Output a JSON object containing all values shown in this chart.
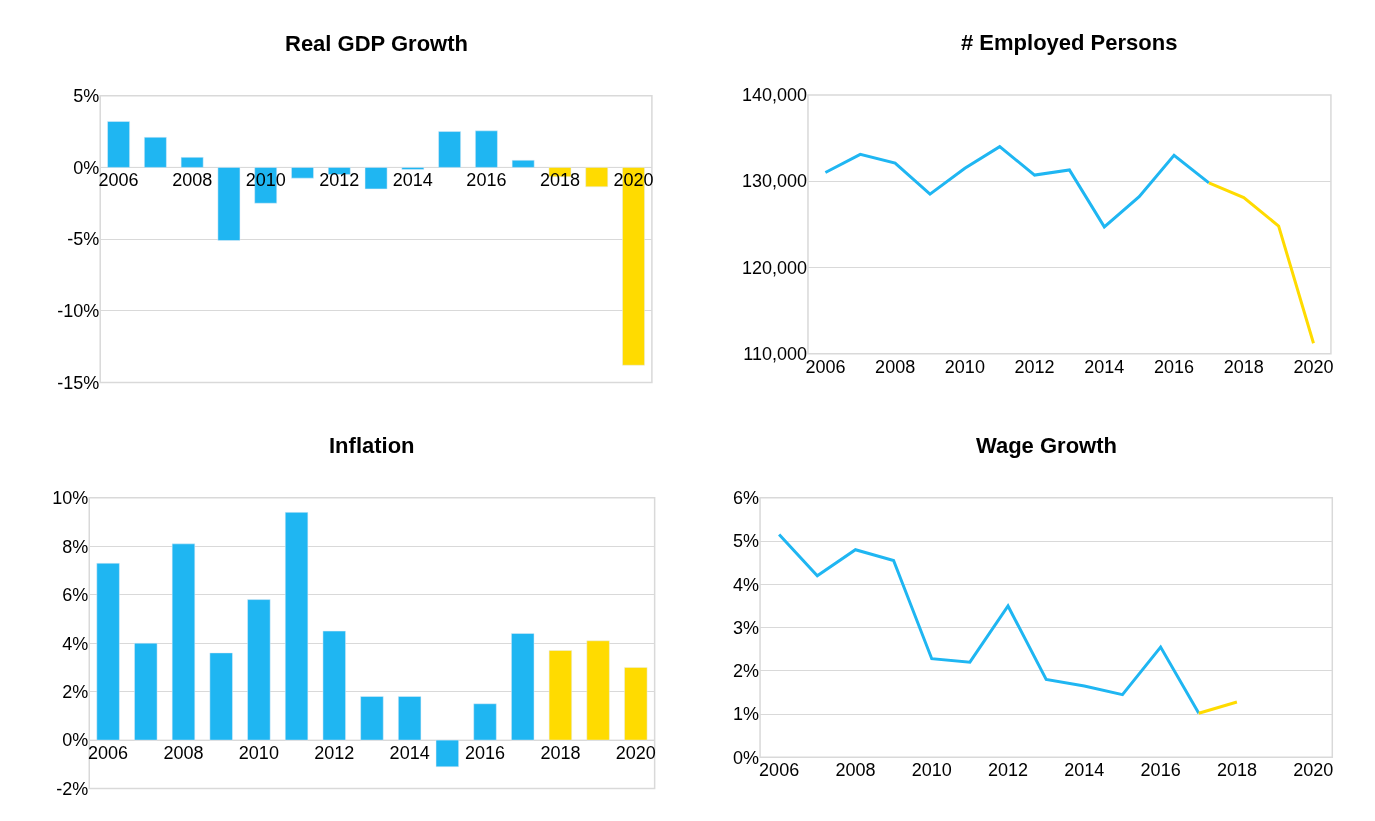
{
  "chart_data": [
    {
      "type": "bar",
      "title": "Real GDP Growth",
      "grid": "y",
      "xlim": [
        2005.5,
        2020.5
      ],
      "xticks": [
        2006,
        2008,
        2010,
        2012,
        2014,
        2016,
        2018,
        2020
      ],
      "ylim": [
        -15,
        5
      ],
      "yticks": [
        {
          "value": -15,
          "label": "-15%"
        },
        {
          "value": -10,
          "label": "-10%"
        },
        {
          "value": -5,
          "label": "-5%"
        },
        {
          "value": 0,
          "label": "0%"
        },
        {
          "value": 5,
          "label": "5%"
        }
      ],
      "series": [
        {
          "color": "#1fb6f2",
          "x": [
            2006,
            2007,
            2008,
            2009,
            2010,
            2011,
            2012,
            2013,
            2014,
            2015,
            2016,
            2017
          ],
          "values": [
            3.2,
            2.1,
            0.7,
            -5.1,
            -2.5,
            -0.75,
            -0.5,
            -1.5,
            -0.15,
            2.5,
            2.55,
            0.5
          ]
        },
        {
          "color": "#ffdb00",
          "x": [
            2018,
            2019,
            2020
          ],
          "values": [
            -0.65,
            -1.35,
            -13.8
          ]
        }
      ]
    },
    {
      "type": "line",
      "title": "# Employed Persons",
      "grid": "y",
      "xlim": [
        2005.5,
        2020.5
      ],
      "xticks": [
        2006,
        2008,
        2010,
        2012,
        2014,
        2016,
        2018,
        2020
      ],
      "ylim": [
        110000,
        140000
      ],
      "yticks": [
        {
          "value": 110000,
          "label": "110,000"
        },
        {
          "value": 120000,
          "label": "120,000"
        },
        {
          "value": 130000,
          "label": "130,000"
        },
        {
          "value": 140000,
          "label": "140,000"
        }
      ],
      "series": [
        {
          "color": "#1fb6f2",
          "x": [
            2006,
            2007,
            2008,
            2009,
            2010,
            2011,
            2012,
            2013,
            2014,
            2015,
            2016,
            2017
          ],
          "values": [
            131000,
            133100,
            132100,
            128500,
            131500,
            134000,
            130700,
            131300,
            124700,
            128200,
            133000,
            129800
          ]
        },
        {
          "color": "#ffdb00",
          "x": [
            2017,
            2018,
            2019,
            2020
          ],
          "values": [
            129800,
            128100,
            124800,
            111200
          ]
        }
      ]
    },
    {
      "type": "bar",
      "title": "Inflation",
      "grid": "y",
      "xlim": [
        2005.5,
        2020.5
      ],
      "xticks": [
        2006,
        2008,
        2010,
        2012,
        2014,
        2016,
        2018,
        2020
      ],
      "ylim": [
        -2,
        10
      ],
      "yticks": [
        {
          "value": -2,
          "label": "-2%"
        },
        {
          "value": 0,
          "label": "0%"
        },
        {
          "value": 2,
          "label": "2%"
        },
        {
          "value": 4,
          "label": "4%"
        },
        {
          "value": 6,
          "label": "6%"
        },
        {
          "value": 8,
          "label": "8%"
        },
        {
          "value": 10,
          "label": "10%"
        }
      ],
      "series": [
        {
          "color": "#1fb6f2",
          "x": [
            2006,
            2007,
            2008,
            2009,
            2010,
            2011,
            2012,
            2013,
            2014,
            2015,
            2016,
            2017
          ],
          "values": [
            7.3,
            4.0,
            8.1,
            3.6,
            5.8,
            9.4,
            4.5,
            1.8,
            1.8,
            -1.1,
            1.5,
            4.4
          ]
        },
        {
          "color": "#ffdb00",
          "x": [
            2018,
            2019,
            2020
          ],
          "values": [
            3.7,
            4.1,
            3.0
          ]
        }
      ]
    },
    {
      "type": "line",
      "title": "Wage Growth",
      "grid": "y",
      "xlim": [
        2005.5,
        2020.5
      ],
      "xticks": [
        2006,
        2008,
        2010,
        2012,
        2014,
        2016,
        2018,
        2020
      ],
      "ylim": [
        0,
        6
      ],
      "yticks": [
        {
          "value": 0,
          "label": "0%"
        },
        {
          "value": 1,
          "label": "1%"
        },
        {
          "value": 2,
          "label": "2%"
        },
        {
          "value": 3,
          "label": "3%"
        },
        {
          "value": 4,
          "label": "4%"
        },
        {
          "value": 5,
          "label": "5%"
        },
        {
          "value": 6,
          "label": "6%"
        }
      ],
      "series": [
        {
          "color": "#1fb6f2",
          "x": [
            2006,
            2007,
            2008,
            2009,
            2010,
            2011,
            2012,
            2013,
            2014,
            2015,
            2016,
            2017
          ],
          "values": [
            5.15,
            4.2,
            4.8,
            4.55,
            2.28,
            2.2,
            3.5,
            1.8,
            1.65,
            1.45,
            2.55,
            1.02
          ]
        },
        {
          "color": "#ffdb00",
          "x": [
            2017,
            2018
          ],
          "values": [
            1.02,
            1.28
          ]
        }
      ]
    }
  ]
}
